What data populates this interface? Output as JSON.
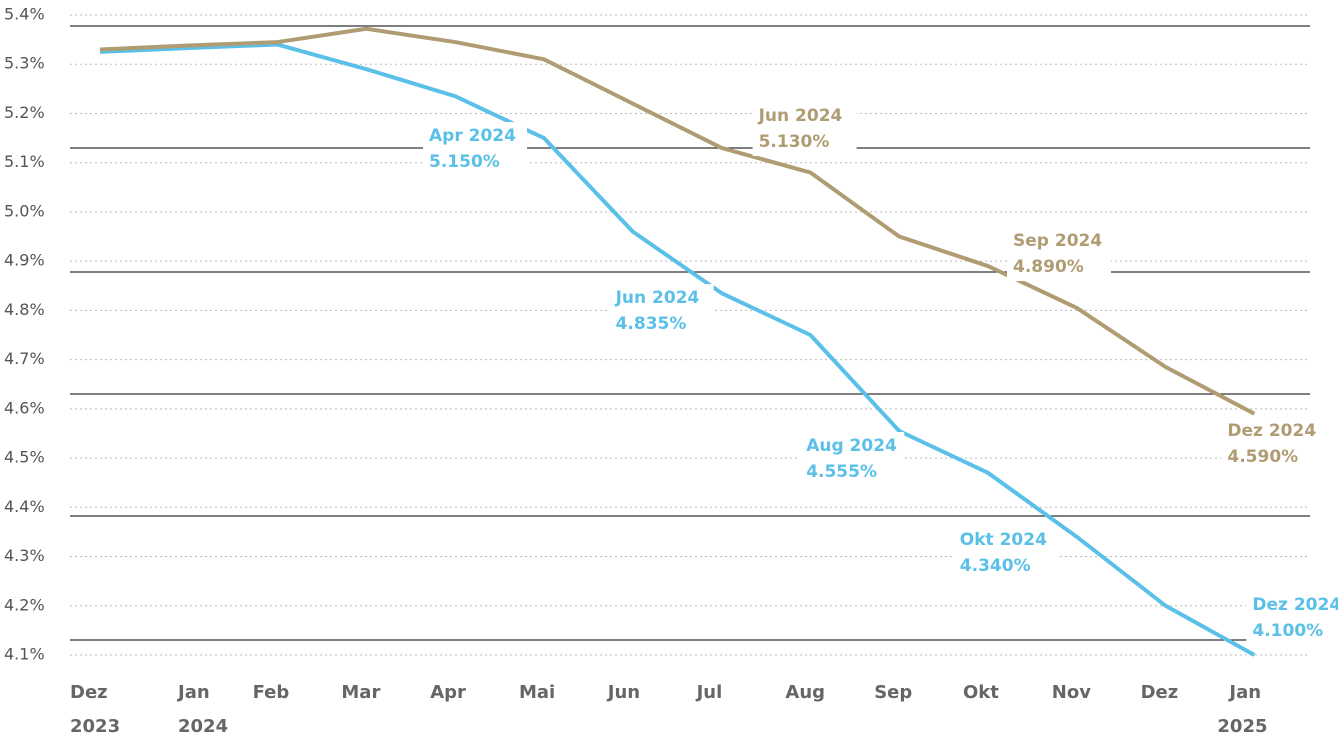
{
  "chart_data": {
    "type": "line",
    "categories": [
      "Dez",
      "Jan",
      "Feb",
      "Mar",
      "Apr",
      "Mai",
      "Jun",
      "Jul",
      "Aug",
      "Sep",
      "Okt",
      "Nov",
      "Dez",
      "Jan"
    ],
    "category_years": [
      "2023",
      "2024",
      null,
      null,
      null,
      null,
      null,
      null,
      null,
      null,
      null,
      null,
      null,
      "2025"
    ],
    "ylim": [
      4.1,
      5.4
    ],
    "yticks": [
      {
        "value": 4.1,
        "label": "4.1%"
      },
      {
        "value": 4.2,
        "label": "4.2%"
      },
      {
        "value": 4.3,
        "label": "4.3%"
      },
      {
        "value": 4.4,
        "label": "4.4%"
      },
      {
        "value": 4.5,
        "label": "4.5%"
      },
      {
        "value": 4.6,
        "label": "4.6%"
      },
      {
        "value": 4.7,
        "label": "4.7%"
      },
      {
        "value": 4.8,
        "label": "4.8%"
      },
      {
        "value": 4.9,
        "label": "4.9%"
      },
      {
        "value": 5.0,
        "label": "5.0%"
      },
      {
        "value": 5.1,
        "label": "5.1%"
      },
      {
        "value": 5.2,
        "label": "5.2%"
      },
      {
        "value": 5.3,
        "label": "5.3%"
      },
      {
        "value": 5.4,
        "label": "5.4%"
      }
    ],
    "grid": true,
    "series": [
      {
        "color": "#5bc0e8",
        "values": [
          5.325,
          5.333,
          5.34,
          5.29,
          5.235,
          5.15,
          4.96,
          4.835,
          4.75,
          4.555,
          4.47,
          4.34,
          4.2,
          4.1
        ],
        "annotations": [
          {
            "point": 5,
            "date": "Apr 2024",
            "label": "5.150%"
          },
          {
            "point": 7,
            "date": "Jun 2024",
            "label": "4.835%"
          },
          {
            "point": 9,
            "date": "Aug 2024",
            "label": "4.555%"
          },
          {
            "point": 11,
            "date": "Okt 2024",
            "label": "4.340%"
          },
          {
            "point": 13,
            "date": "Dez 2024",
            "label": "4.100%"
          }
        ]
      },
      {
        "color": "#b09c73",
        "values": [
          5.33,
          5.338,
          5.345,
          5.372,
          5.345,
          5.31,
          5.22,
          5.13,
          5.08,
          4.95,
          4.89,
          4.805,
          4.685,
          4.59
        ],
        "annotations": [
          {
            "point": 7,
            "date": "Jun 2024",
            "label": "5.130%"
          },
          {
            "point": 10,
            "date": "Sep 2024",
            "label": "4.890%"
          },
          {
            "point": 13,
            "date": "Dez 2024",
            "label": "4.590%"
          }
        ]
      }
    ]
  }
}
